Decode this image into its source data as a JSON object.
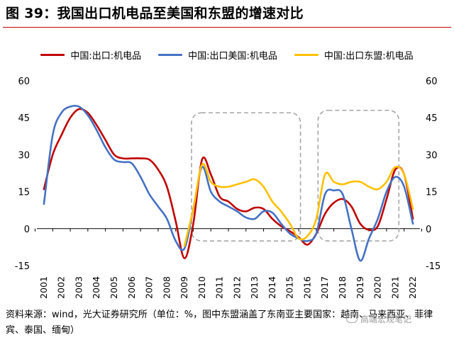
{
  "header": {
    "title": "图 39：我国出口机电品至美国和东盟的增速对比"
  },
  "colors": {
    "china": "#c00000",
    "us": "#4472c4",
    "asean": "#ffc000",
    "accent": "#c00000"
  },
  "chart_data": {
    "type": "line",
    "x": [
      2001,
      2002,
      2003,
      2004,
      2005,
      2006,
      2007,
      2008,
      2009,
      2010,
      2011,
      2012,
      2013,
      2014,
      2015,
      2016,
      2017,
      2018,
      2019,
      2020,
      2021,
      2022
    ],
    "series": [
      {
        "name": "中国:出口:机电品",
        "points": [
          [
            2001.0,
            16
          ],
          [
            2001.5,
            30
          ],
          [
            2002.0,
            38
          ],
          [
            2002.5,
            45
          ],
          [
            2003.0,
            48.5
          ],
          [
            2003.5,
            47
          ],
          [
            2004.0,
            42
          ],
          [
            2004.5,
            36
          ],
          [
            2005.0,
            30
          ],
          [
            2005.5,
            28.5
          ],
          [
            2006.0,
            28.5
          ],
          [
            2006.5,
            28.5
          ],
          [
            2007.0,
            28
          ],
          [
            2007.5,
            24
          ],
          [
            2008.0,
            17
          ],
          [
            2008.5,
            3
          ],
          [
            2009.0,
            -12
          ],
          [
            2009.5,
            2
          ],
          [
            2010.0,
            28
          ],
          [
            2010.5,
            22
          ],
          [
            2011.0,
            13
          ],
          [
            2011.5,
            11
          ],
          [
            2012.0,
            8
          ],
          [
            2012.5,
            7
          ],
          [
            2013.0,
            8.5
          ],
          [
            2013.5,
            8
          ],
          [
            2014.0,
            4
          ],
          [
            2014.5,
            1
          ],
          [
            2015.0,
            -1
          ],
          [
            2015.5,
            -3.5
          ],
          [
            2016.0,
            -6.5
          ],
          [
            2016.5,
            -2
          ],
          [
            2017.0,
            6
          ],
          [
            2017.5,
            10.5
          ],
          [
            2018.0,
            12
          ],
          [
            2018.5,
            9
          ],
          [
            2019.0,
            2
          ],
          [
            2019.5,
            -0.5
          ],
          [
            2020.0,
            1
          ],
          [
            2020.5,
            12
          ],
          [
            2021.0,
            24
          ],
          [
            2021.5,
            22
          ],
          [
            2022.0,
            4
          ]
        ]
      },
      {
        "name": "中国:出口美国:机电品",
        "points": [
          [
            2001.0,
            10
          ],
          [
            2001.5,
            38
          ],
          [
            2002.0,
            47
          ],
          [
            2002.5,
            49.5
          ],
          [
            2003.0,
            49.5
          ],
          [
            2003.5,
            46
          ],
          [
            2004.0,
            40
          ],
          [
            2004.5,
            33
          ],
          [
            2005.0,
            28
          ],
          [
            2005.5,
            27
          ],
          [
            2006.0,
            26.5
          ],
          [
            2006.5,
            21
          ],
          [
            2007.0,
            14
          ],
          [
            2007.5,
            9
          ],
          [
            2008.0,
            4
          ],
          [
            2008.5,
            -5
          ],
          [
            2009.0,
            -8
          ],
          [
            2009.5,
            8
          ],
          [
            2010.0,
            25
          ],
          [
            2010.5,
            15
          ],
          [
            2011.0,
            11
          ],
          [
            2011.5,
            9
          ],
          [
            2012.0,
            7
          ],
          [
            2012.5,
            4.5
          ],
          [
            2013.0,
            4
          ],
          [
            2013.5,
            7
          ],
          [
            2014.0,
            6.5
          ],
          [
            2014.5,
            2
          ],
          [
            2015.0,
            -2
          ],
          [
            2015.5,
            -4
          ],
          [
            2016.0,
            -5
          ],
          [
            2016.5,
            -2
          ],
          [
            2017.0,
            14
          ],
          [
            2017.5,
            15.5
          ],
          [
            2018.0,
            14
          ],
          [
            2018.5,
            0
          ],
          [
            2019.0,
            -13
          ],
          [
            2019.5,
            -4
          ],
          [
            2020.0,
            4
          ],
          [
            2020.5,
            15
          ],
          [
            2021.0,
            21
          ],
          [
            2021.5,
            17
          ],
          [
            2022.0,
            2
          ]
        ]
      },
      {
        "name": "中国:出口东盟:机电品",
        "points": [
          [
            2009.0,
            -7
          ],
          [
            2009.5,
            8
          ],
          [
            2010.0,
            26
          ],
          [
            2010.5,
            19
          ],
          [
            2011.0,
            17
          ],
          [
            2011.5,
            17
          ],
          [
            2012.0,
            18
          ],
          [
            2012.5,
            19
          ],
          [
            2013.0,
            20
          ],
          [
            2013.5,
            17
          ],
          [
            2014.0,
            11
          ],
          [
            2014.5,
            7
          ],
          [
            2015.0,
            2
          ],
          [
            2015.5,
            -4
          ],
          [
            2016.0,
            -3
          ],
          [
            2016.5,
            4
          ],
          [
            2017.0,
            22
          ],
          [
            2017.5,
            19
          ],
          [
            2018.0,
            18
          ],
          [
            2018.5,
            19
          ],
          [
            2019.0,
            19
          ],
          [
            2019.5,
            17
          ],
          [
            2020.0,
            16
          ],
          [
            2020.5,
            19
          ],
          [
            2021.0,
            25
          ],
          [
            2021.5,
            22
          ],
          [
            2022.0,
            8
          ]
        ]
      }
    ],
    "y_left": {
      "ticks": [
        -15,
        0,
        15,
        30,
        45,
        60
      ],
      "ylim": [
        -15,
        60
      ]
    },
    "y_right": {
      "ticks": [
        -15,
        0,
        15,
        30,
        45,
        60
      ],
      "ylim": [
        -15,
        60
      ]
    },
    "x_tick_labels": [
      "2001",
      "2002",
      "2003",
      "2004",
      "2005",
      "2006",
      "2007",
      "2008",
      "2009",
      "2010",
      "2011",
      "2012",
      "2013",
      "2014",
      "2015",
      "2016",
      "2017",
      "2018",
      "2019",
      "2020",
      "2021",
      "2022"
    ],
    "highlight_boxes": [
      {
        "x_range": [
          2009.4,
          2015.6
        ],
        "y_range": [
          -5,
          47
        ],
        "style": "dashed"
      },
      {
        "x_range": [
          2016.6,
          2021.2
        ],
        "y_range": [
          -5,
          48
        ],
        "style": "dashed"
      }
    ],
    "legend_position": "top"
  },
  "source": {
    "text": "资料来源：wind，光大证券研究所（单位：%，图中东盟涵盖了东南亚主要国家：越南、马来西亚、菲律宾、泰国、缅甸）"
  },
  "watermark": {
    "text": "高端宏观笔记"
  }
}
